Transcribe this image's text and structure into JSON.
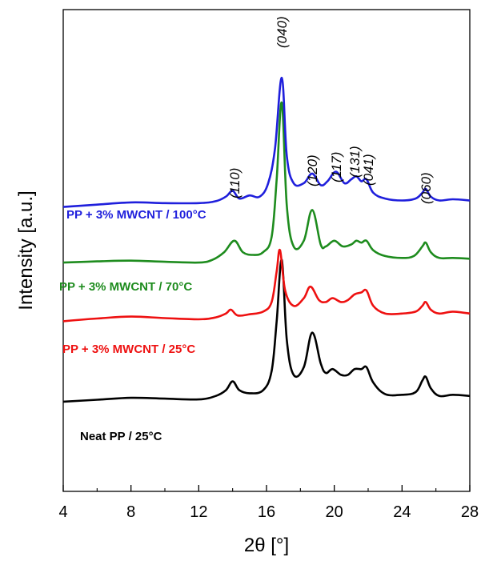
{
  "chart_data": {
    "type": "line",
    "xlabel": "2θ [°]",
    "ylabel": "Intensity [a.u.]",
    "xlim": [
      4,
      28
    ],
    "ylim": [
      0,
      100
    ],
    "xticks": [
      "4",
      "8",
      "12",
      "16",
      "20",
      "24",
      "28"
    ],
    "y_tick_labels": false,
    "grid": false,
    "peak_labels": [
      {
        "text": "(110)",
        "x": 14.1
      },
      {
        "text": "(040)",
        "x": 16.9
      },
      {
        "text": "(120)",
        "x": 18.7
      },
      {
        "text": "(117)",
        "x": 20.1
      },
      {
        "text": "(131)",
        "x": 21.2
      },
      {
        "text": "(041)",
        "x": 22.0
      },
      {
        "text": "(060)",
        "x": 25.4
      }
    ],
    "series": [
      {
        "name": "Neat PP / 25°C",
        "color": "#000000",
        "x": [
          4,
          6,
          8,
          10,
          12,
          13,
          13.6,
          14.0,
          14.4,
          15,
          15.8,
          16.3,
          16.6,
          16.9,
          17.2,
          17.6,
          18.2,
          18.7,
          19.2,
          19.5,
          19.9,
          20.4,
          20.8,
          21.2,
          21.6,
          21.9,
          22.3,
          23,
          24,
          24.8,
          25.2,
          25.4,
          25.7,
          26.2,
          27,
          28
        ],
        "y": [
          14.0,
          14.5,
          15.0,
          14.8,
          14.6,
          15.5,
          17.0,
          19.3,
          17.0,
          16.2,
          17.0,
          22.0,
          35.0,
          51.0,
          30.0,
          21.0,
          23.0,
          32.0,
          24.0,
          21.5,
          22.5,
          21.0,
          21.0,
          22.5,
          22.5,
          23.0,
          19.0,
          16.0,
          15.8,
          16.5,
          19.5,
          20.5,
          17.5,
          15.5,
          15.8,
          15.5
        ]
      },
      {
        "name": "PP + 3% MWCNT / 25°C",
        "color": "#ee1111",
        "x": [
          4,
          6,
          8,
          10,
          12,
          13,
          13.6,
          13.9,
          14.3,
          15,
          15.8,
          16.3,
          16.6,
          16.8,
          17.1,
          17.6,
          18.2,
          18.6,
          19.1,
          19.5,
          19.9,
          20.4,
          20.8,
          21.2,
          21.6,
          21.9,
          22.3,
          23,
          24,
          24.8,
          25.2,
          25.4,
          25.7,
          26.2,
          27,
          28
        ],
        "y": [
          35.0,
          35.7,
          36.2,
          35.8,
          35.5,
          36.0,
          37.0,
          38.0,
          36.5,
          36.8,
          37.5,
          40.0,
          48.0,
          53.5,
          43.0,
          39.0,
          41.0,
          44.0,
          40.5,
          40.0,
          41.0,
          40.0,
          40.5,
          42.0,
          42.5,
          43.0,
          39.0,
          37.0,
          37.0,
          37.5,
          39.0,
          40.0,
          38.0,
          37.0,
          37.5,
          37.0
        ]
      },
      {
        "name": "PP + 3% MWCNT / 70°C",
        "color": "#1e8c1e",
        "x": [
          4,
          6,
          8,
          10,
          12,
          12.8,
          13.5,
          14.1,
          14.6,
          15.2,
          15.8,
          16.3,
          16.6,
          16.9,
          17.2,
          17.6,
          18.2,
          18.7,
          19.2,
          19.5,
          20.0,
          20.5,
          21.0,
          21.3,
          21.6,
          21.9,
          22.3,
          23,
          24,
          24.7,
          25.2,
          25.4,
          25.7,
          26.2,
          27,
          28
        ],
        "y": [
          50.3,
          50.6,
          50.8,
          50.5,
          50.3,
          51.0,
          53.0,
          56.0,
          53.0,
          52.3,
          53.0,
          57.0,
          72.0,
          92.0,
          65.0,
          54.5,
          56.0,
          64.0,
          55.0,
          54.5,
          56.0,
          54.5,
          55.0,
          56.0,
          55.5,
          56.0,
          53.5,
          52.0,
          51.5,
          52.0,
          54.5,
          55.5,
          53.0,
          51.5,
          51.5,
          51.3
        ]
      },
      {
        "name": "PP + 3% MWCNT / 100°C",
        "color": "#1f1fdc",
        "x": [
          4,
          6,
          8,
          10,
          12,
          13,
          13.6,
          14.0,
          14.4,
          15,
          15.6,
          16.1,
          16.5,
          16.9,
          17.2,
          17.6,
          18.2,
          18.7,
          19.2,
          19.6,
          20.1,
          20.6,
          21.0,
          21.3,
          21.6,
          21.9,
          22.3,
          23,
          24,
          24.8,
          25.2,
          25.4,
          25.7,
          26.2,
          27,
          28
        ],
        "y": [
          64.8,
          65.4,
          66.0,
          65.8,
          65.8,
          66.3,
          67.5,
          69.0,
          67.0,
          67.8,
          67.5,
          71.0,
          80.0,
          98.5,
          78.0,
          71.0,
          71.0,
          73.5,
          70.5,
          71.5,
          74.0,
          71.0,
          72.0,
          72.8,
          71.5,
          72.0,
          68.5,
          67.0,
          66.5,
          67.0,
          68.5,
          69.5,
          67.5,
          66.5,
          66.8,
          66.5
        ]
      }
    ]
  }
}
